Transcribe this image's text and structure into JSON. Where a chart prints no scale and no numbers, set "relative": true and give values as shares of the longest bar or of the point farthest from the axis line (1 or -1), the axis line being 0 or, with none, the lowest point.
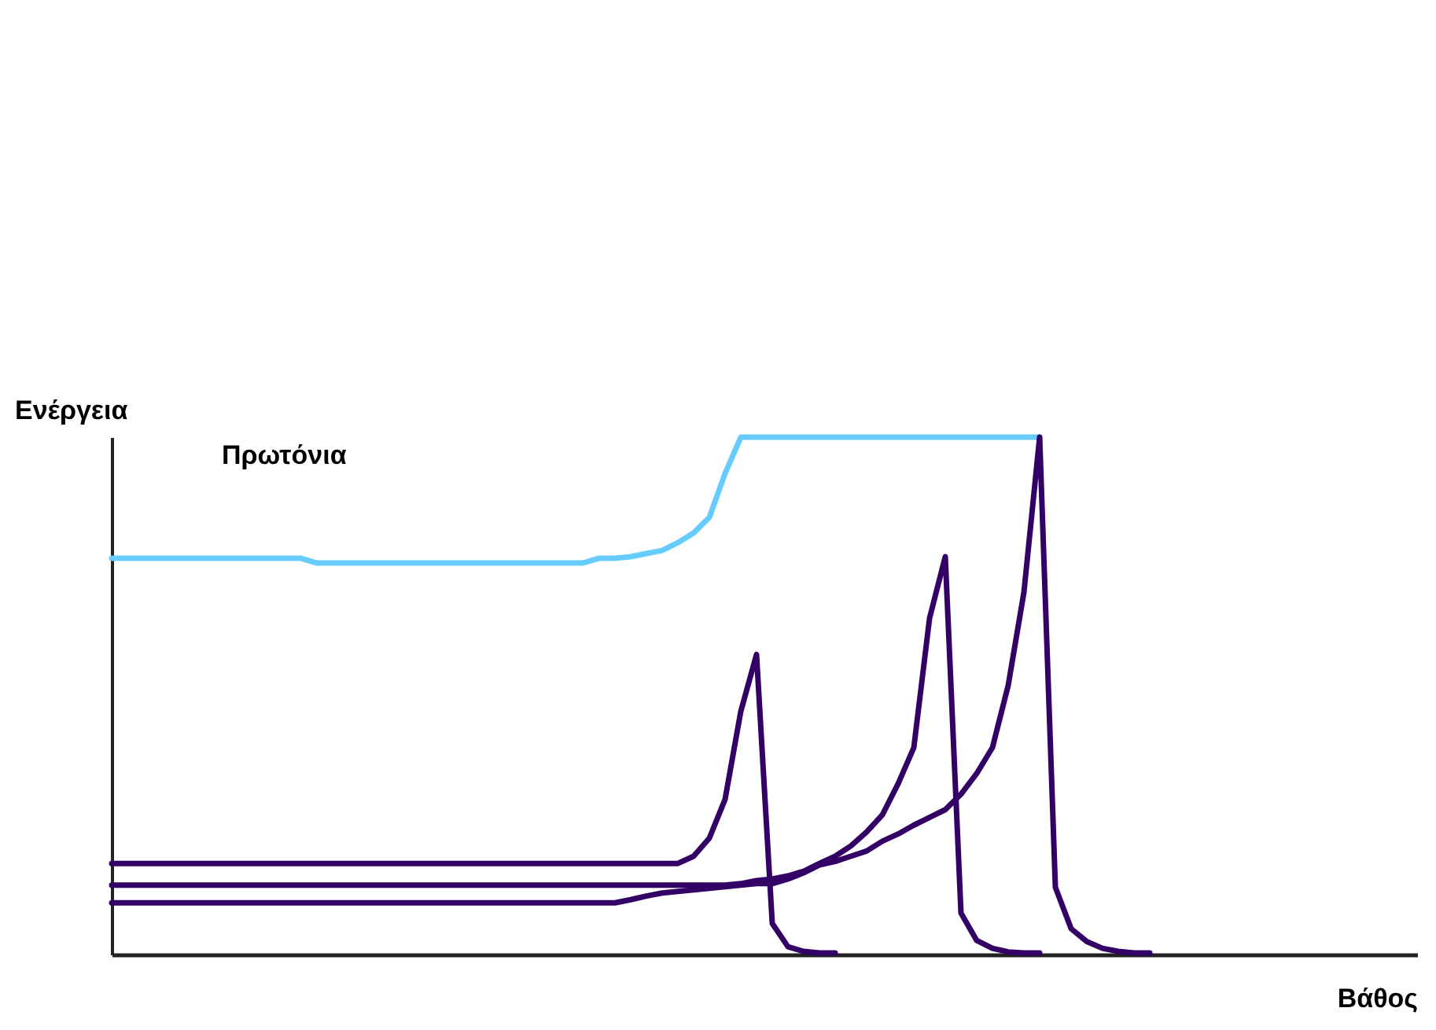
{
  "chart_data": {
    "type": "line",
    "relative": true,
    "xlabel": "Βάθος",
    "ylabel": "Ενέργεια",
    "marker": "none",
    "line_style": "solid",
    "annotations": [
      "Πρωτόνια"
    ],
    "categories": [
      null,
      null,
      null,
      null,
      null,
      null,
      null,
      null,
      null,
      null,
      null,
      null,
      null,
      null,
      null,
      null,
      null,
      null,
      null,
      null,
      null,
      null,
      null,
      null,
      null,
      null,
      null,
      null,
      null,
      null,
      null,
      null,
      null,
      null,
      null,
      null,
      null,
      null,
      null,
      null,
      null,
      null,
      null,
      null,
      null,
      null,
      null,
      null,
      null,
      null,
      null,
      null,
      null,
      null,
      null,
      null,
      null,
      null,
      null,
      null,
      null,
      null,
      null,
      null,
      null,
      null,
      null,
      null,
      null,
      null,
      null,
      null,
      null,
      null,
      null,
      null,
      null,
      null,
      null,
      null,
      null,
      null,
      null,
      null
    ],
    "series": [
      {
        "color": "#66ccff",
        "values": [
          0.766,
          0.766,
          0.766,
          0.766,
          0.766,
          0.766,
          0.766,
          0.766,
          0.766,
          0.766,
          0.766,
          0.766,
          0.766,
          0.757,
          0.757,
          0.757,
          0.757,
          0.757,
          0.757,
          0.757,
          0.757,
          0.757,
          0.757,
          0.757,
          0.757,
          0.757,
          0.757,
          0.757,
          0.757,
          0.757,
          0.757,
          0.766,
          0.766,
          0.769,
          0.775,
          0.781,
          0.796,
          0.815,
          0.845,
          0.93,
          1.0,
          1.0,
          1.0,
          1.0,
          1.0,
          1.0,
          1.0,
          1.0,
          1.0,
          1.0,
          1.0,
          1.0,
          1.0,
          1.0,
          1.0,
          1.0,
          1.0,
          1.0,
          1.0,
          1.0,
          null,
          null,
          null,
          null,
          null,
          null,
          null,
          null,
          null,
          null,
          null,
          null,
          null,
          null,
          null,
          null,
          null,
          null,
          null,
          null,
          null,
          null,
          null,
          null
        ]
      },
      {
        "color": "#330066",
        "values": [
          0.176,
          0.176,
          0.176,
          0.176,
          0.176,
          0.176,
          0.176,
          0.176,
          0.176,
          0.176,
          0.176,
          0.176,
          0.176,
          0.176,
          0.176,
          0.176,
          0.176,
          0.176,
          0.176,
          0.176,
          0.176,
          0.176,
          0.176,
          0.176,
          0.176,
          0.176,
          0.176,
          0.176,
          0.176,
          0.176,
          0.176,
          0.176,
          0.176,
          0.176,
          0.176,
          0.176,
          0.176,
          0.19,
          0.225,
          0.3,
          0.47,
          0.58,
          0.06,
          0.015,
          0.006,
          0.003,
          0.003,
          null,
          null,
          null,
          null,
          null,
          null,
          null,
          null,
          null,
          null,
          null,
          null,
          null,
          null,
          null,
          null,
          null,
          null,
          null,
          null,
          null,
          null,
          null,
          null,
          null,
          null,
          null,
          null,
          null,
          null,
          null,
          null,
          null,
          null,
          null,
          null,
          null
        ]
      },
      {
        "color": "#330066",
        "values": [
          0.134,
          0.134,
          0.134,
          0.134,
          0.134,
          0.134,
          0.134,
          0.134,
          0.134,
          0.134,
          0.134,
          0.134,
          0.134,
          0.134,
          0.134,
          0.134,
          0.134,
          0.134,
          0.134,
          0.134,
          0.134,
          0.134,
          0.134,
          0.134,
          0.134,
          0.134,
          0.134,
          0.134,
          0.134,
          0.134,
          0.134,
          0.134,
          0.134,
          0.134,
          0.134,
          0.134,
          0.134,
          0.134,
          0.134,
          0.134,
          0.137,
          0.143,
          0.146,
          0.152,
          0.161,
          0.176,
          0.19,
          0.21,
          0.237,
          0.27,
          0.33,
          0.4,
          0.65,
          0.769,
          0.08,
          0.027,
          0.012,
          0.005,
          0.003,
          0.003,
          null,
          null,
          null,
          null,
          null,
          null,
          null,
          null,
          null,
          null,
          null,
          null,
          null,
          null,
          null,
          null,
          null,
          null,
          null,
          null,
          null,
          null,
          null,
          null
        ]
      },
      {
        "color": "#330066",
        "values": [
          0.1,
          0.1,
          0.1,
          0.1,
          0.1,
          0.1,
          0.1,
          0.1,
          0.1,
          0.1,
          0.1,
          0.1,
          0.1,
          0.1,
          0.1,
          0.1,
          0.1,
          0.1,
          0.1,
          0.1,
          0.1,
          0.1,
          0.1,
          0.1,
          0.1,
          0.1,
          0.1,
          0.1,
          0.1,
          0.1,
          0.1,
          0.1,
          0.1,
          0.106,
          0.113,
          0.119,
          0.122,
          0.125,
          0.128,
          0.131,
          0.134,
          0.137,
          0.137,
          0.146,
          0.158,
          0.173,
          0.18,
          0.19,
          0.2,
          0.219,
          0.233,
          0.25,
          0.265,
          0.28,
          0.31,
          0.35,
          0.4,
          0.52,
          0.7,
          1.0,
          0.13,
          0.05,
          0.025,
          0.012,
          0.006,
          0.003,
          0.003,
          null,
          null,
          null,
          null,
          null,
          null,
          null,
          null,
          null,
          null,
          null,
          null,
          null,
          null,
          null,
          null,
          null
        ]
      }
    ]
  }
}
